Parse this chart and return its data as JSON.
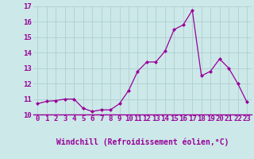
{
  "x": [
    0,
    1,
    2,
    3,
    4,
    5,
    6,
    7,
    8,
    9,
    10,
    11,
    12,
    13,
    14,
    15,
    16,
    17,
    18,
    19,
    20,
    21,
    22,
    23
  ],
  "y": [
    10.7,
    10.85,
    10.9,
    11.0,
    11.0,
    10.4,
    10.2,
    10.3,
    10.3,
    10.7,
    11.55,
    12.8,
    13.4,
    13.4,
    14.1,
    15.5,
    15.8,
    16.75,
    12.5,
    12.8,
    13.6,
    13.0,
    12.0,
    10.8
  ],
  "ylim": [
    10,
    17
  ],
  "yticks": [
    10,
    11,
    12,
    13,
    14,
    15,
    16,
    17
  ],
  "xticks": [
    0,
    1,
    2,
    3,
    4,
    5,
    6,
    7,
    8,
    9,
    10,
    11,
    12,
    13,
    14,
    15,
    16,
    17,
    18,
    19,
    20,
    21,
    22,
    23
  ],
  "xlabel": "Windchill (Refroidissement éolien,°C)",
  "line_color": "#990099",
  "marker": "D",
  "marker_size": 2.5,
  "bg_color": "#cce8e8",
  "grid_color": "#b0d0d0",
  "tick_label_color": "#990099",
  "xlabel_color": "#990099",
  "xlabel_fontsize": 7.0,
  "tick_fontsize": 6.5,
  "separator_color": "#990099"
}
